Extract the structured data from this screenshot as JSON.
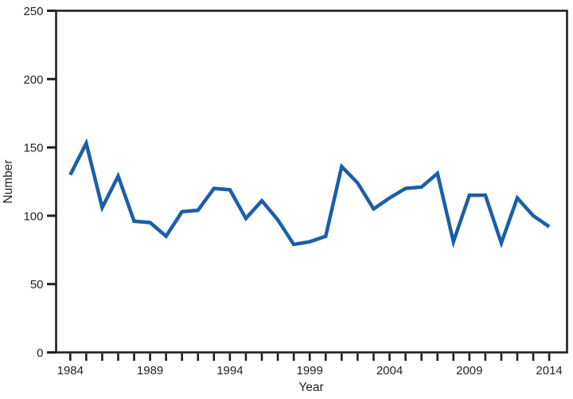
{
  "chart_data": {
    "type": "line",
    "title": "",
    "xlabel": "Year",
    "ylabel": "Number",
    "x": [
      1984,
      1985,
      1986,
      1987,
      1988,
      1989,
      1990,
      1991,
      1992,
      1993,
      1994,
      1995,
      1996,
      1997,
      1998,
      1999,
      2000,
      2001,
      2002,
      2003,
      2004,
      2005,
      2006,
      2007,
      2008,
      2009,
      2010,
      2011,
      2012,
      2013,
      2014
    ],
    "values": [
      130,
      153,
      106,
      129,
      96,
      95,
      85,
      103,
      104,
      120,
      119,
      98,
      111,
      97,
      79,
      81,
      85,
      136,
      124,
      105,
      113,
      120,
      121,
      131,
      81,
      115,
      115,
      80,
      113,
      100,
      92
    ],
    "ylim": [
      0,
      250
    ],
    "yticks": [
      0,
      50,
      100,
      150,
      200,
      250
    ],
    "xtick_labels": [
      1984,
      1989,
      1994,
      1999,
      2004,
      2009,
      2014
    ],
    "minor_xticks": "every year",
    "grid": "off",
    "legend": "none",
    "line_color": "#1A5FA8",
    "axis_color": "#231F20",
    "background_color": "#FFFFFF"
  }
}
